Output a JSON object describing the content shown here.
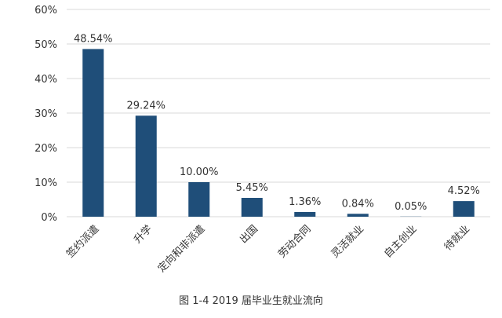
{
  "caption": "图 1-4   2019 届毕业生就业流向",
  "chart_data": {
    "type": "bar",
    "categories": [
      "签约派遣",
      "升学",
      "定向和非派遣",
      "出国",
      "劳动合同",
      "灵活就业",
      "自主创业",
      "待就业"
    ],
    "values": [
      48.54,
      29.24,
      10.0,
      5.45,
      1.36,
      0.84,
      0.05,
      4.52
    ],
    "data_labels": [
      "48.54%",
      "29.24%",
      "10.00%",
      "5.45%",
      "1.36%",
      "0.84%",
      "0.05%",
      "4.52%"
    ],
    "y_ticks": [
      "0%",
      "10%",
      "20%",
      "30%",
      "40%",
      "50%",
      "60%"
    ],
    "ylim": [
      0,
      60
    ],
    "grid": true,
    "bar_color": "#1F4E79",
    "grid_color": "#D9D9D9",
    "label_color": "#333333"
  }
}
